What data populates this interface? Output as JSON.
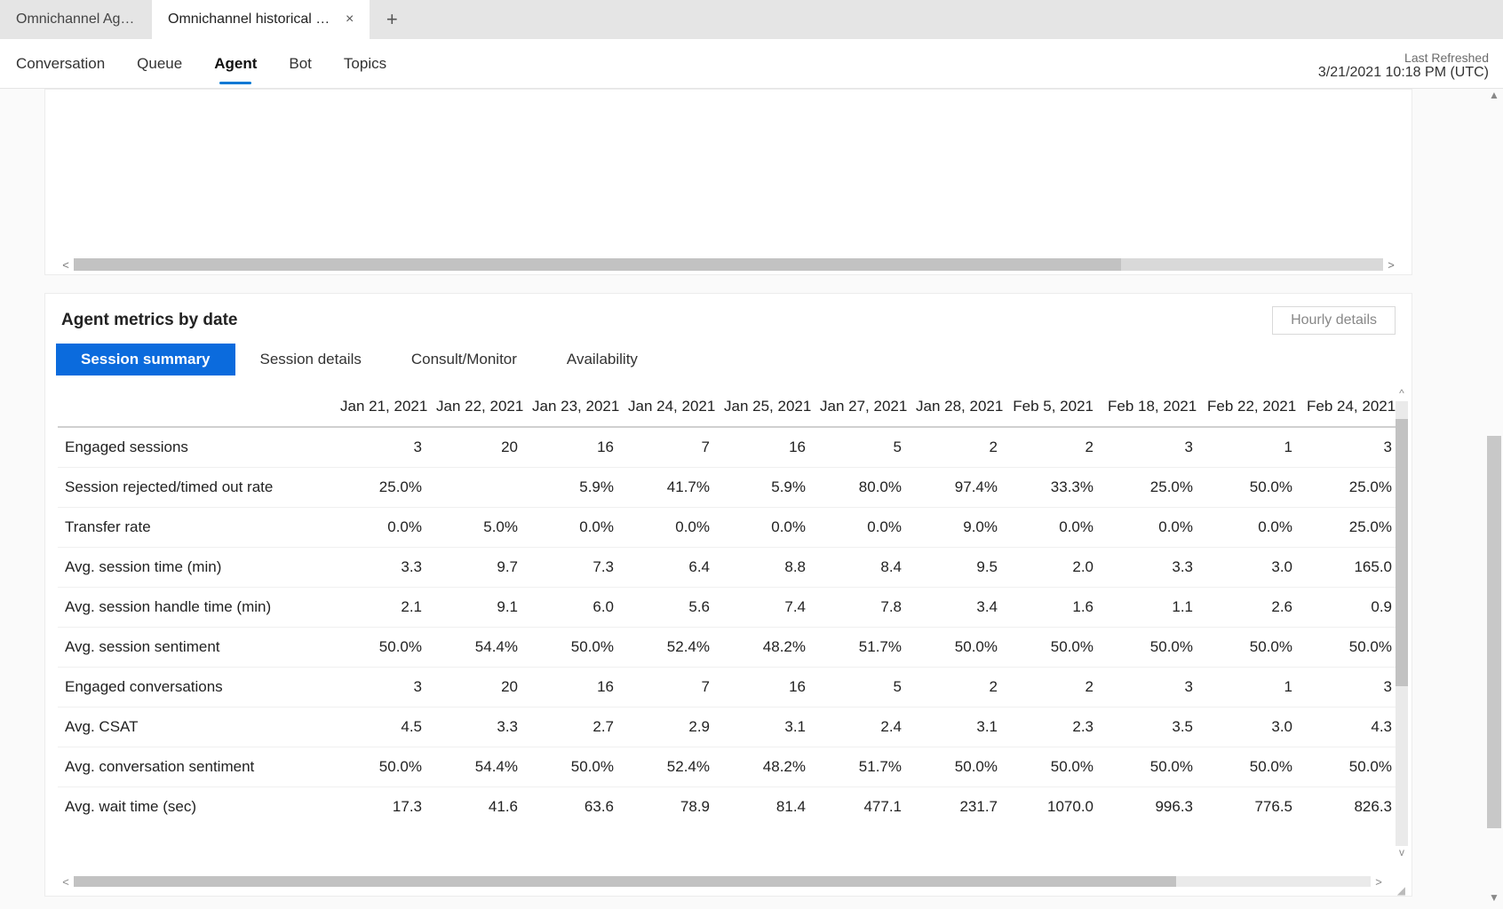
{
  "colors": {
    "accent": "#0b6bdd",
    "nav_underline": "#0078d4",
    "page_bg": "#e5e5e5",
    "card_bg": "#ffffff",
    "scroll_track": "#d9d9d9",
    "scroll_thumb": "#c2c2c2",
    "border": "#ececec",
    "row_border": "#f0f0f0"
  },
  "tabstrip": {
    "tabs": [
      {
        "label": "Omnichannel Age...",
        "active": false
      },
      {
        "label": "Omnichannel historical an...",
        "active": true
      }
    ],
    "close_icon": "×",
    "new_tab_icon": "+"
  },
  "navbar": {
    "items": [
      "Conversation",
      "Queue",
      "Agent",
      "Bot",
      "Topics"
    ],
    "active_index": 2,
    "last_refreshed_label": "Last Refreshed",
    "last_refreshed_value": "3/21/2021 10:18 PM (UTC)"
  },
  "chart_card": {
    "hscroll": {
      "left": "<",
      "right": ">",
      "thumb_width_pct": 80
    }
  },
  "metrics_card": {
    "title": "Agent metrics by date",
    "hourly_button": "Hourly details",
    "subtabs": [
      "Session summary",
      "Session details",
      "Consult/Monitor",
      "Availability"
    ],
    "subtab_active_index": 0,
    "table": {
      "columns": [
        "Jan 21, 2021",
        "Jan 22, 2021",
        "Jan 23, 2021",
        "Jan 24, 2021",
        "Jan 25, 2021",
        "Jan 27, 2021",
        "Jan 28, 2021",
        "Feb 5, 2021",
        "Feb 18, 2021",
        "Feb 22, 2021",
        "Feb 24, 2021"
      ],
      "rows": [
        {
          "label": "Engaged sessions",
          "values": [
            "3",
            "20",
            "16",
            "7",
            "16",
            "5",
            "2",
            "2",
            "3",
            "1",
            "3"
          ]
        },
        {
          "label": "Session rejected/timed out rate",
          "values": [
            "25.0%",
            "",
            "5.9%",
            "41.7%",
            "5.9%",
            "80.0%",
            "97.4%",
            "33.3%",
            "25.0%",
            "50.0%",
            "25.0%"
          ]
        },
        {
          "label": "Transfer rate",
          "values": [
            "0.0%",
            "5.0%",
            "0.0%",
            "0.0%",
            "0.0%",
            "0.0%",
            "9.0%",
            "0.0%",
            "0.0%",
            "0.0%",
            "25.0%"
          ]
        },
        {
          "label": "Avg. session time (min)",
          "values": [
            "3.3",
            "9.7",
            "7.3",
            "6.4",
            "8.8",
            "8.4",
            "9.5",
            "2.0",
            "3.3",
            "3.0",
            "165.0"
          ]
        },
        {
          "label": "Avg. session handle time (min)",
          "values": [
            "2.1",
            "9.1",
            "6.0",
            "5.6",
            "7.4",
            "7.8",
            "3.4",
            "1.6",
            "1.1",
            "2.6",
            "0.9"
          ]
        },
        {
          "label": "Avg. session sentiment",
          "values": [
            "50.0%",
            "54.4%",
            "50.0%",
            "52.4%",
            "48.2%",
            "51.7%",
            "50.0%",
            "50.0%",
            "50.0%",
            "50.0%",
            "50.0%"
          ]
        },
        {
          "label": "Engaged conversations",
          "values": [
            "3",
            "20",
            "16",
            "7",
            "16",
            "5",
            "2",
            "2",
            "3",
            "1",
            "3"
          ]
        },
        {
          "label": "Avg. CSAT",
          "values": [
            "4.5",
            "3.3",
            "2.7",
            "2.9",
            "3.1",
            "2.4",
            "3.1",
            "2.3",
            "3.5",
            "3.0",
            "4.3"
          ]
        },
        {
          "label": "Avg. conversation sentiment",
          "values": [
            "50.0%",
            "54.4%",
            "50.0%",
            "52.4%",
            "48.2%",
            "51.7%",
            "50.0%",
            "50.0%",
            "50.0%",
            "50.0%",
            "50.0%"
          ]
        },
        {
          "label": "Avg. wait time (sec)",
          "values": [
            "17.3",
            "41.6",
            "63.6",
            "78.9",
            "81.4",
            "477.1",
            "231.7",
            "1070.0",
            "996.3",
            "776.5",
            "826.3"
          ]
        }
      ]
    },
    "hscroll": {
      "left": "<",
      "right": ">",
      "thumb_width_pct": 85
    },
    "vscroll": {
      "up": "^",
      "down": "v"
    }
  },
  "page_vscroll": {
    "up": "▲",
    "down": "▼"
  }
}
